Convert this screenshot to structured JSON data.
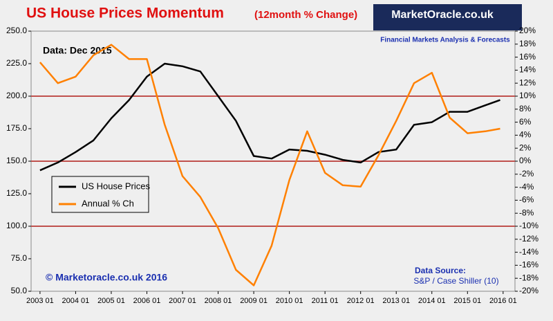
{
  "chart_data": {
    "type": "line",
    "title": "US House Prices Momentum",
    "subtitle": "(12month % Change)",
    "annotations": [
      "Data: Dec 2015",
      "© Marketoracle.co.uk 2016",
      "Data Source:",
      "S&P / Case Shiller (10)"
    ],
    "logo": {
      "name": "MarketOracle.co.uk",
      "tagline": "Financial Markets Analysis & Forecasts"
    },
    "x": [
      "2003-01",
      "2003-07",
      "2004-01",
      "2004-07",
      "2005-01",
      "2005-07",
      "2006-01",
      "2006-07",
      "2007-01",
      "2007-07",
      "2008-01",
      "2008-07",
      "2009-01",
      "2009-07",
      "2010-01",
      "2010-07",
      "2011-01",
      "2011-07",
      "2012-01",
      "2012-07",
      "2013-01",
      "2013-07",
      "2014-01",
      "2014-07",
      "2015-01",
      "2015-07",
      "2015-12"
    ],
    "series": [
      {
        "name": "US House Prices",
        "color": "#000000",
        "axis": "y",
        "values": [
          143,
          149,
          157,
          166,
          183,
          197,
          215,
          225,
          223,
          219,
          200,
          181,
          154,
          152,
          159,
          158,
          155,
          151,
          149,
          157,
          159,
          178,
          180,
          188,
          188,
          193,
          197
        ]
      },
      {
        "name": "Annual % Ch",
        "color": "#ff8000",
        "axis": "y2",
        "values": [
          15.2,
          12,
          13,
          16.3,
          17.9,
          15.7,
          15.7,
          5.6,
          -2.3,
          -5.5,
          -10.3,
          -16.7,
          -19.1,
          -13,
          -2.9,
          4.6,
          -1.8,
          -3.7,
          -3.9,
          0.9,
          6.2,
          12,
          13.6,
          6.7,
          4.3,
          4.6,
          5
        ]
      }
    ],
    "xlim": [
      "2002-10",
      "2016-05"
    ],
    "xticks": [
      "2003 01",
      "2004 01",
      "2005 01",
      "2006 01",
      "2007 01",
      "2008 01",
      "2009 01",
      "2010 01",
      "2011 01",
      "2012 01",
      "2013 01",
      "2014 01",
      "2015 01",
      "2016 01"
    ],
    "ylim": [
      50,
      250
    ],
    "yticks": [
      {
        "value": 50,
        "label": "50.0"
      },
      {
        "value": 75,
        "label": "75.0"
      },
      {
        "value": 100,
        "label": "100.0"
      },
      {
        "value": 125,
        "label": "125.0"
      },
      {
        "value": 150,
        "label": "150.0"
      },
      {
        "value": 175,
        "label": "175.0"
      },
      {
        "value": 200,
        "label": "200.0"
      },
      {
        "value": 225,
        "label": "225.0"
      },
      {
        "value": 250,
        "label": "250.0"
      }
    ],
    "y2lim": [
      -20,
      20
    ],
    "y2ticks": [
      {
        "value": -20,
        "label": "-20%"
      },
      {
        "value": -18,
        "label": "-18%"
      },
      {
        "value": -16,
        "label": "-16%"
      },
      {
        "value": -14,
        "label": "-14%"
      },
      {
        "value": -12,
        "label": "-12%"
      },
      {
        "value": -10,
        "label": "-10%"
      },
      {
        "value": -8,
        "label": "-8%"
      },
      {
        "value": -6,
        "label": "-6%"
      },
      {
        "value": -4,
        "label": "-4%"
      },
      {
        "value": -2,
        "label": "-2%"
      },
      {
        "value": 0,
        "label": "0%"
      },
      {
        "value": 2,
        "label": "2%"
      },
      {
        "value": 4,
        "label": "4%"
      },
      {
        "value": 6,
        "label": "6%"
      },
      {
        "value": 8,
        "label": "8%"
      },
      {
        "value": 10,
        "label": "10%"
      },
      {
        "value": 12,
        "label": "12%"
      },
      {
        "value": 14,
        "label": "14%"
      },
      {
        "value": 16,
        "label": "16%"
      },
      {
        "value": 18,
        "label": "18%"
      },
      {
        "value": 20,
        "label": "20%"
      }
    ],
    "hlines": {
      "axis": "y2",
      "color": "#c0504d",
      "values": [
        10,
        0,
        -10
      ]
    }
  }
}
